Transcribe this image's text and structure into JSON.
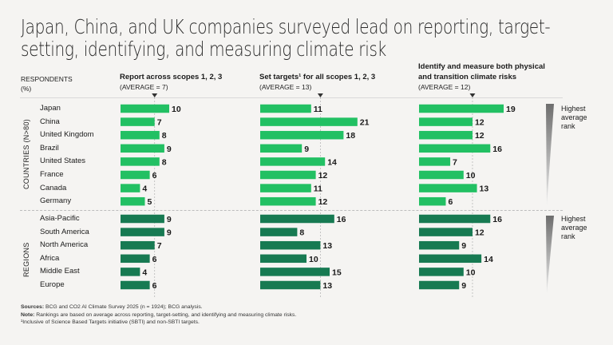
{
  "chart_data": {
    "type": "bar",
    "title": "Japan, China, and UK companies surveyed lead on reporting, target-setting, identifying, and measuring climate risk",
    "ylabel": "RESPONDENTS (%)",
    "groups": [
      {
        "name": "COUNTRIES (N>80)",
        "categories": [
          "Japan",
          "China",
          "United Kingdom",
          "Brazil",
          "United States",
          "France",
          "Canada",
          "Germany"
        ],
        "color": "#22c063"
      },
      {
        "name": "REGIONS",
        "categories": [
          "Asia-Pacific",
          "South America",
          "North America",
          "Africa",
          "Middle East",
          "Europe"
        ],
        "color": "#177a52"
      }
    ],
    "series": [
      {
        "name": "Report across scopes 1, 2, 3",
        "average_label": "(AVERAGE = 7)",
        "average": 7,
        "countries": [
          10,
          7,
          8,
          9,
          8,
          6,
          4,
          5
        ],
        "regions": [
          9,
          9,
          7,
          6,
          4,
          6
        ]
      },
      {
        "name": "Set targets¹ for all scopes 1, 2, 3",
        "average_label": "(AVERAGE = 13)",
        "average": 13,
        "countries": [
          11,
          21,
          18,
          9,
          14,
          12,
          11,
          12
        ],
        "regions": [
          16,
          8,
          13,
          10,
          15,
          13
        ]
      },
      {
        "name": "Identify and measure both physical and transition climate risks",
        "average_label": "(AVERAGE = 12)",
        "average": 12,
        "countries": [
          19,
          12,
          12,
          16,
          7,
          10,
          13,
          6
        ],
        "regions": [
          16,
          12,
          9,
          14,
          10,
          9
        ]
      }
    ],
    "rank_note": "Highest average rank",
    "grid": false,
    "legend": "none"
  },
  "header": {
    "title": "Japan, China, and UK companies surveyed lead on reporting, target-setting, identifying, and measuring climate risk",
    "respondents_line1": "RESPONDENTS",
    "respondents_line2": "(%)",
    "col1_title": "Report across scopes 1, 2, 3",
    "col1_avg": "(AVERAGE = 7)",
    "col2_title": "Set targets¹ for all scopes 1, 2, 3",
    "col2_avg": "(AVERAGE = 13)",
    "col3_title_line1": "Identify and measure both physical",
    "col3_title_line2": "and transition climate risks",
    "col3_avg": "(AVERAGE = 12)"
  },
  "rank": {
    "line1": "Highest",
    "line2": "average",
    "line3": "rank"
  },
  "footnotes": {
    "sources_label": "Sources:",
    "sources_text": " BCG and CO2 AI Climate Survey 2025 (n = 1924); BCG analysis.",
    "note_label": "Note:",
    "note_text": " Rankings are based on average across reporting, target-setting, and identifying and measuring climate risks.",
    "footnote1": "¹Inclusive of Science Based Targets initiative (SBTI) and non-SBTI targets."
  }
}
